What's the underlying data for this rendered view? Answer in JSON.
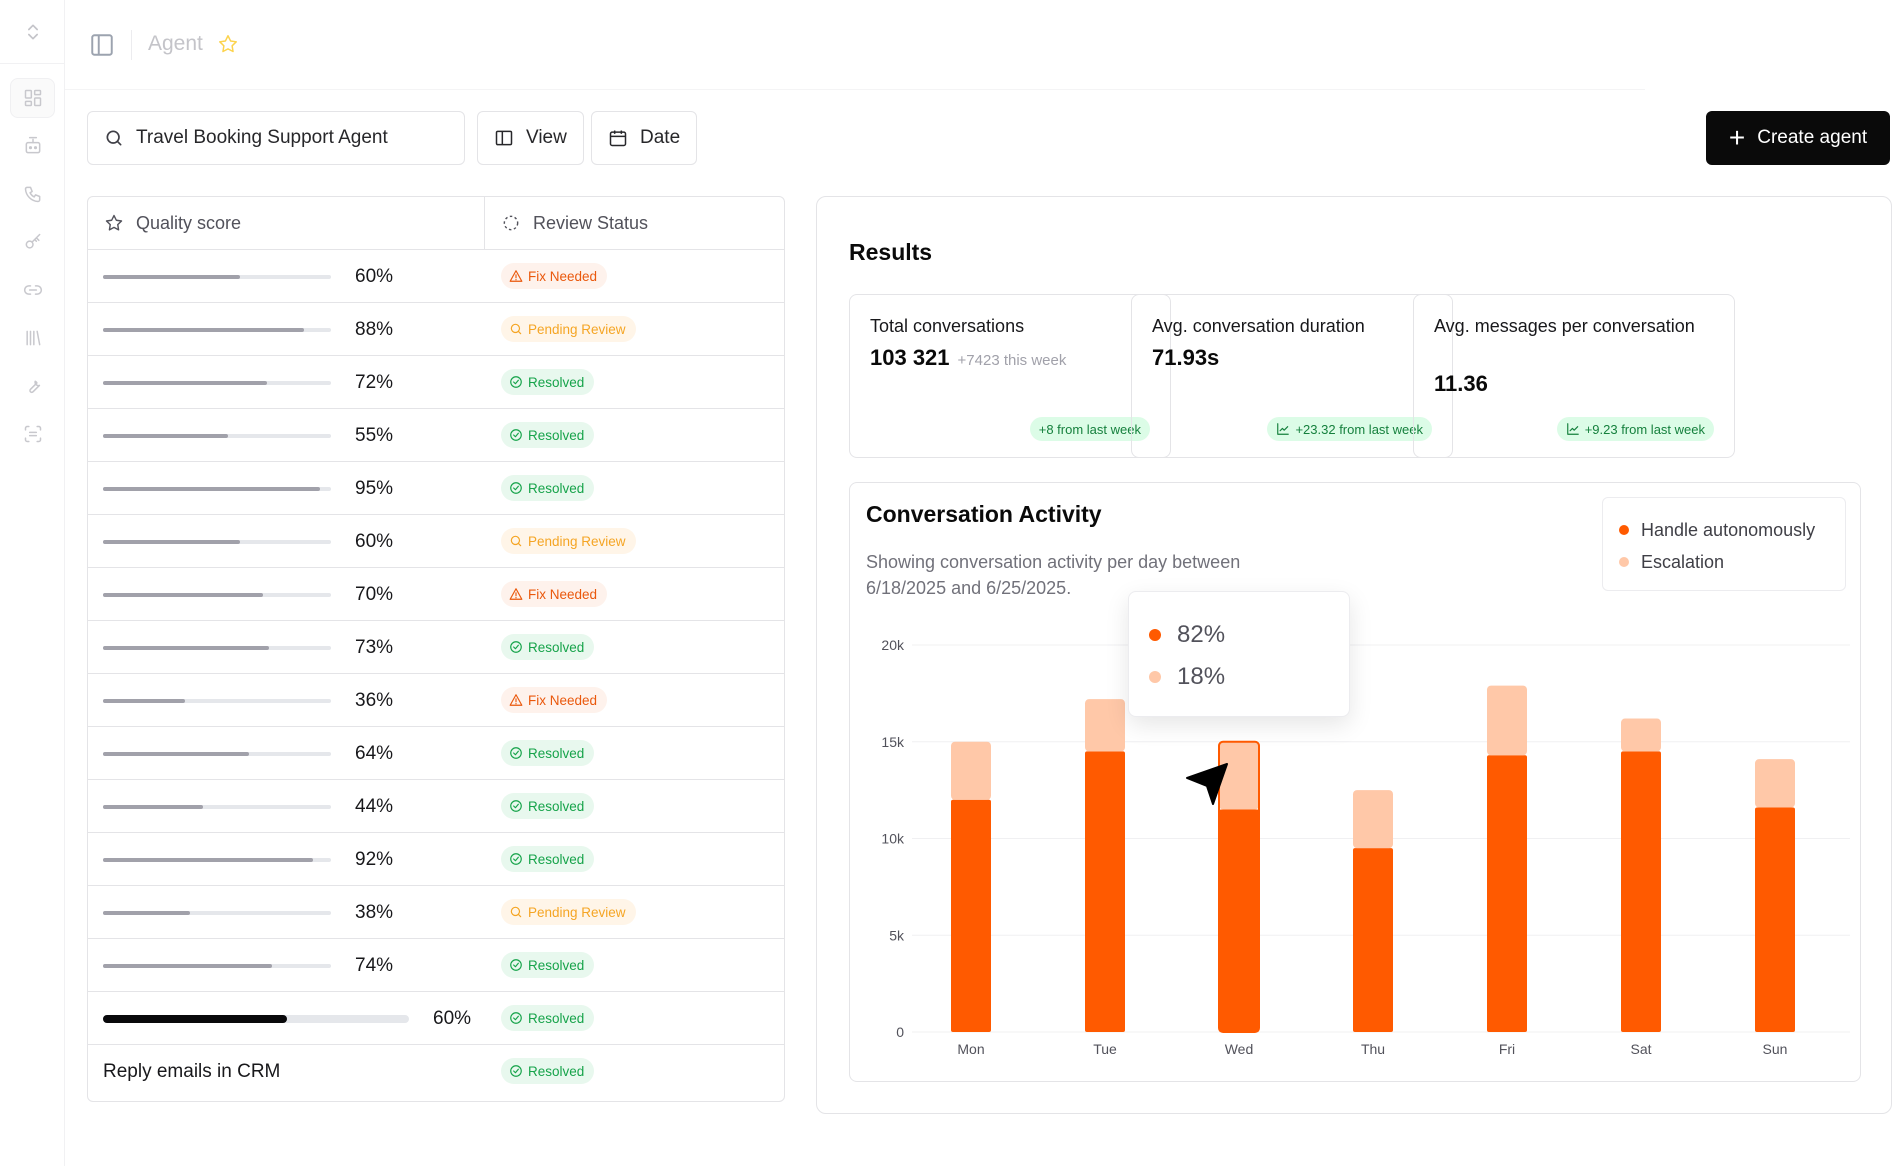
{
  "header": {
    "title": "Agent"
  },
  "toolbar": {
    "search_value": "Travel Booking Support Agent",
    "view_label": "View",
    "date_label": "Date",
    "create_label": "Create agent"
  },
  "table": {
    "col_quality": "Quality score",
    "col_review": "Review Status",
    "rows": [
      {
        "score": 60,
        "score_label": "60%",
        "status": "Fix Needed",
        "kind": "fix"
      },
      {
        "score": 88,
        "score_label": "88%",
        "status": "Pending Review",
        "kind": "pend"
      },
      {
        "score": 72,
        "score_label": "72%",
        "status": "Resolved",
        "kind": "res"
      },
      {
        "score": 55,
        "score_label": "55%",
        "status": "Resolved",
        "kind": "res"
      },
      {
        "score": 95,
        "score_label": "95%",
        "status": "Resolved",
        "kind": "res"
      },
      {
        "score": 60,
        "score_label": "60%",
        "status": "Pending Review",
        "kind": "pend"
      },
      {
        "score": 70,
        "score_label": "70%",
        "status": "Fix Needed",
        "kind": "fix"
      },
      {
        "score": 73,
        "score_label": "73%",
        "status": "Resolved",
        "kind": "res"
      },
      {
        "score": 36,
        "score_label": "36%",
        "status": "Fix Needed",
        "kind": "fix"
      },
      {
        "score": 64,
        "score_label": "64%",
        "status": "Resolved",
        "kind": "res"
      },
      {
        "score": 44,
        "score_label": "44%",
        "status": "Resolved",
        "kind": "res"
      },
      {
        "score": 92,
        "score_label": "92%",
        "status": "Resolved",
        "kind": "res"
      },
      {
        "score": 38,
        "score_label": "38%",
        "status": "Pending Review",
        "kind": "pend"
      },
      {
        "score": 74,
        "score_label": "74%",
        "status": "Resolved",
        "kind": "res"
      },
      {
        "score": 60,
        "score_label": "60%",
        "status": "Resolved",
        "kind": "res",
        "highlight": true
      }
    ],
    "last_row": {
      "text": "Reply emails in CRM",
      "status": "Resolved"
    }
  },
  "results": {
    "title": "Results",
    "cards": [
      {
        "label": "Total conversations",
        "value": "103 321",
        "sub": "+7423 this week",
        "trend": "+8 from last week",
        "trend_icon": false
      },
      {
        "label": "Avg. conversation duration",
        "value": "71.93s",
        "sub": "",
        "trend": "+23.32 from last week",
        "trend_icon": true
      },
      {
        "label": "Avg. messages per conversation",
        "value": "11.36",
        "sub": "",
        "trend": "+9.23 from last week",
        "trend_icon": true
      }
    ]
  },
  "activity": {
    "title": "Conversation Activity",
    "subtitle": "Showing conversation activity per day between 6/18/2025 and 6/25/2025.",
    "legend": [
      {
        "name": "Handle autonomously",
        "color": "#ff5a00"
      },
      {
        "name": "Escalation",
        "color": "#ffc8a8"
      }
    ],
    "tooltip": {
      "primary": "82%",
      "secondary": "18%"
    }
  },
  "chart_data": {
    "type": "bar",
    "stacked": true,
    "categories": [
      "Mon",
      "Tue",
      "Wed",
      "Thu",
      "Fri",
      "Sat",
      "Sun"
    ],
    "series": [
      {
        "name": "Handle autonomously",
        "color": "#ff5a00",
        "values": [
          12000,
          14500,
          11500,
          9500,
          14300,
          14500,
          11600
        ]
      },
      {
        "name": "Escalation",
        "color": "#ffc8a8",
        "values": [
          3000,
          2700,
          3500,
          3000,
          3600,
          1700,
          2500
        ]
      }
    ],
    "ylim": [
      0,
      20000
    ],
    "yticks": [
      0,
      5000,
      10000,
      15000,
      20000
    ],
    "ytick_labels": [
      "0",
      "5k",
      "10k",
      "15k",
      "20k"
    ],
    "highlight_index": 2,
    "grid": true,
    "legend_position": "top-right"
  },
  "colors": {
    "accent": "#ff5a00",
    "accent_light": "#ffc8a8",
    "primary_button": "#0a0a0a"
  }
}
